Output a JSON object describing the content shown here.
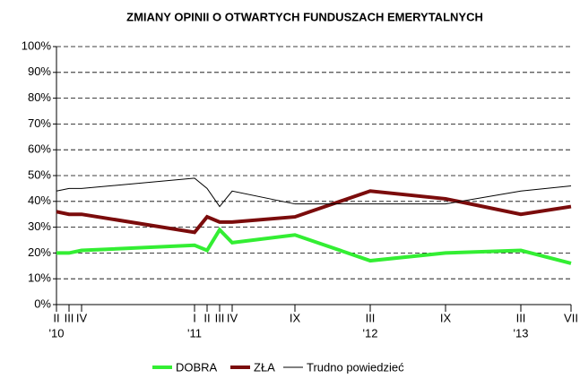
{
  "chart_data": {
    "type": "line",
    "title": "ZMIANY OPINII O OTWARTYCH FUNDUSZACH EMERYTALNYCH",
    "categories": [
      "II",
      "III",
      "IV",
      "I",
      "II",
      "III",
      "IV",
      "IX",
      "III",
      "IX",
      "III",
      "VII"
    ],
    "year_labels": [
      "'10",
      null,
      null,
      "'11",
      null,
      null,
      null,
      null,
      "'12",
      null,
      "'13",
      null
    ],
    "series": [
      {
        "name": "DOBRA",
        "color": "#33ee33",
        "values": [
          20,
          20,
          21,
          23,
          21,
          29,
          24,
          27,
          17,
          20,
          21,
          16
        ]
      },
      {
        "name": "ZŁA",
        "color": "#7b0c0c",
        "values": [
          36,
          35,
          35,
          28,
          34,
          32,
          32,
          34,
          44,
          41,
          35,
          38
        ]
      },
      {
        "name": "Trudno powiedzieć",
        "color": "#000000",
        "values": [
          44,
          45,
          45,
          49,
          45,
          38,
          44,
          39,
          39,
          39,
          44,
          46
        ]
      }
    ],
    "ylim": [
      0,
      100
    ],
    "yticks": [
      {
        "value": 0,
        "label": "0%"
      },
      {
        "value": 10,
        "label": "10%"
      },
      {
        "value": 20,
        "label": "20%"
      },
      {
        "value": 30,
        "label": "30%"
      },
      {
        "value": 40,
        "label": "40%"
      },
      {
        "value": 50,
        "label": "50%"
      },
      {
        "value": 60,
        "label": "60%"
      },
      {
        "value": 70,
        "label": "70%"
      },
      {
        "value": 80,
        "label": "80%"
      },
      {
        "value": 90,
        "label": "90%"
      },
      {
        "value": 100,
        "label": "100%"
      }
    ],
    "grid": true
  }
}
